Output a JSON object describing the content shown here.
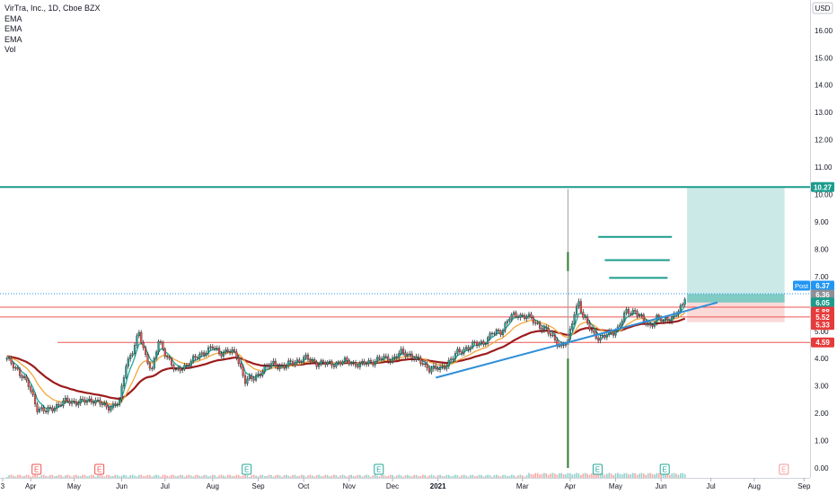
{
  "legend": {
    "title": "VirTra, Inc., 1D, Cboe BZX",
    "indicators": [
      "EMA",
      "EMA",
      "EMA",
      "Vol"
    ]
  },
  "currency": "USD",
  "earnings_marker_label": "E",
  "chart_data": {
    "type": "candlestick",
    "title": "VirTra, Inc., 1D, Cboe BZX",
    "ylim": [
      0,
      17
    ],
    "y_ticks": [
      "0.00",
      "1.00",
      "2.00",
      "3.00",
      "4.00",
      "5.00",
      "6.00",
      "7.00",
      "8.00",
      "9.00",
      "10.00",
      "11.00",
      "12.00",
      "13.00",
      "14.00",
      "15.00",
      "16.00"
    ],
    "x_ticks": [
      {
        "label": "3",
        "t": -2
      },
      {
        "label": "Apr",
        "t": 11
      },
      {
        "label": "May",
        "t": 31
      },
      {
        "label": "Jun",
        "t": 53
      },
      {
        "label": "Jul",
        "t": 73
      },
      {
        "label": "Aug",
        "t": 95
      },
      {
        "label": "Sep",
        "t": 116
      },
      {
        "label": "Oct",
        "t": 137
      },
      {
        "label": "Nov",
        "t": 158
      },
      {
        "label": "Dec",
        "t": 178
      },
      {
        "label": "2021",
        "t": 199
      },
      {
        "label": "Mar",
        "t": 238
      },
      {
        "label": "Apr",
        "t": 260
      },
      {
        "label": "May",
        "t": 281
      },
      {
        "label": "Jun",
        "t": 302
      },
      {
        "label": "Jul",
        "t": 325
      },
      {
        "label": "Aug",
        "t": 345
      },
      {
        "label": "Sep",
        "t": 368
      }
    ],
    "price_anchors": [
      [
        0,
        3.95
      ],
      [
        5,
        3.6
      ],
      [
        10,
        3.0
      ],
      [
        14,
        2.2
      ],
      [
        18,
        2.05
      ],
      [
        22,
        2.25
      ],
      [
        28,
        2.45
      ],
      [
        34,
        2.4
      ],
      [
        40,
        2.5
      ],
      [
        46,
        2.2
      ],
      [
        52,
        2.4
      ],
      [
        55,
        3.8
      ],
      [
        58,
        4.3
      ],
      [
        61,
        4.9
      ],
      [
        64,
        4.1
      ],
      [
        67,
        3.6
      ],
      [
        70,
        4.6
      ],
      [
        74,
        4.1
      ],
      [
        78,
        3.5
      ],
      [
        83,
        3.8
      ],
      [
        87,
        4.0
      ],
      [
        92,
        4.3
      ],
      [
        95,
        4.4
      ],
      [
        98,
        4.2
      ],
      [
        102,
        4.3
      ],
      [
        106,
        4.1
      ],
      [
        110,
        3.2
      ],
      [
        114,
        3.25
      ],
      [
        118,
        3.6
      ],
      [
        123,
        3.8
      ],
      [
        128,
        3.7
      ],
      [
        133,
        3.9
      ],
      [
        138,
        4.0
      ],
      [
        143,
        3.85
      ],
      [
        148,
        3.8
      ],
      [
        153,
        3.85
      ],
      [
        158,
        3.9
      ],
      [
        163,
        3.75
      ],
      [
        168,
        3.9
      ],
      [
        174,
        4.0
      ],
      [
        178,
        4.0
      ],
      [
        182,
        4.2
      ],
      [
        186,
        4.15
      ],
      [
        190,
        3.9
      ],
      [
        195,
        3.65
      ],
      [
        200,
        3.6
      ],
      [
        204,
        3.9
      ],
      [
        208,
        4.2
      ],
      [
        212,
        4.4
      ],
      [
        216,
        4.5
      ],
      [
        220,
        4.6
      ],
      [
        224,
        4.9
      ],
      [
        228,
        5.0
      ],
      [
        232,
        5.5
      ],
      [
        236,
        5.6
      ],
      [
        240,
        5.55
      ],
      [
        244,
        5.3
      ],
      [
        248,
        5.1
      ],
      [
        252,
        4.75
      ],
      [
        256,
        4.45
      ],
      [
        259,
        4.6
      ],
      [
        262,
        5.7
      ],
      [
        264,
        6.1
      ],
      [
        266,
        5.5
      ],
      [
        270,
        5.0
      ],
      [
        274,
        4.7
      ],
      [
        278,
        4.9
      ],
      [
        282,
        5.1
      ],
      [
        286,
        5.7
      ],
      [
        290,
        5.75
      ],
      [
        294,
        5.35
      ],
      [
        297,
        5.2
      ],
      [
        300,
        5.5
      ],
      [
        303,
        5.35
      ],
      [
        306,
        5.5
      ],
      [
        309,
        5.65
      ],
      [
        312,
        5.9
      ],
      [
        313,
        6.25
      ]
    ],
    "ema_lines": [
      {
        "color": "#26a69a",
        "period": 5
      },
      {
        "color": "#f4a63b",
        "period": 15
      },
      {
        "color": "#9c1c1c",
        "period": 40
      }
    ],
    "price_lines": [
      {
        "price": 10.27,
        "label": "10.27",
        "color": "#1b9c8c",
        "style": "solid",
        "box": "#1b9c8c"
      },
      {
        "price": 6.37,
        "label": "6.37",
        "color": "#2196f3",
        "style": "dotted",
        "box": "#2196f3",
        "tag": "Post"
      },
      {
        "price": 6.36,
        "label": "6.36",
        "color": "#787b86",
        "box": "#8d9097"
      },
      {
        "price": 6.05,
        "label": "6.05",
        "color": "#1b9c8c",
        "box": "#1b9c8c"
      },
      {
        "price": 5.88,
        "label": "5.88",
        "color": "#ef5350",
        "style": "solid",
        "box": "#e63b3b"
      },
      {
        "price": 5.52,
        "label": "5.52",
        "color": "#ef5350",
        "style": "solid",
        "box": "#e63b3b"
      },
      {
        "price": 5.33,
        "label": "5.33",
        "color": "#ef5350",
        "box": "#e63b3b"
      },
      {
        "price": 4.59,
        "label": "4.59",
        "color": "#ef5350",
        "style": "solid",
        "box": "#e63b3b"
      }
    ],
    "trendline": {
      "from": [
        198,
        3.3
      ],
      "to": [
        328,
        6.05
      ],
      "color": "#2f8fd8"
    },
    "targets": [
      {
        "price": 8.45,
        "t0": 273,
        "t1": 307
      },
      {
        "price": 7.6,
        "t0": 276,
        "t1": 306
      },
      {
        "price": 6.95,
        "t0": 278,
        "t1": 305
      }
    ],
    "position": {
      "entry": 6.05,
      "target": 10.27,
      "stop": 5.33,
      "t0": 314,
      "t1": 359
    },
    "spike": {
      "t": 259,
      "high": 10.2,
      "low": 0
    },
    "earnings_markers": [
      {
        "t": 0,
        "color": "#ef5350"
      },
      {
        "t": 29,
        "color": "#ef5350"
      },
      {
        "t": 97,
        "color": "#26a69a"
      },
      {
        "t": 158,
        "color": "#26a69a"
      },
      {
        "t": 259,
        "color": "#26a69a"
      },
      {
        "t": 290,
        "color": "#26a69a"
      },
      {
        "t": 345,
        "color": "#ef9a9a"
      }
    ]
  }
}
